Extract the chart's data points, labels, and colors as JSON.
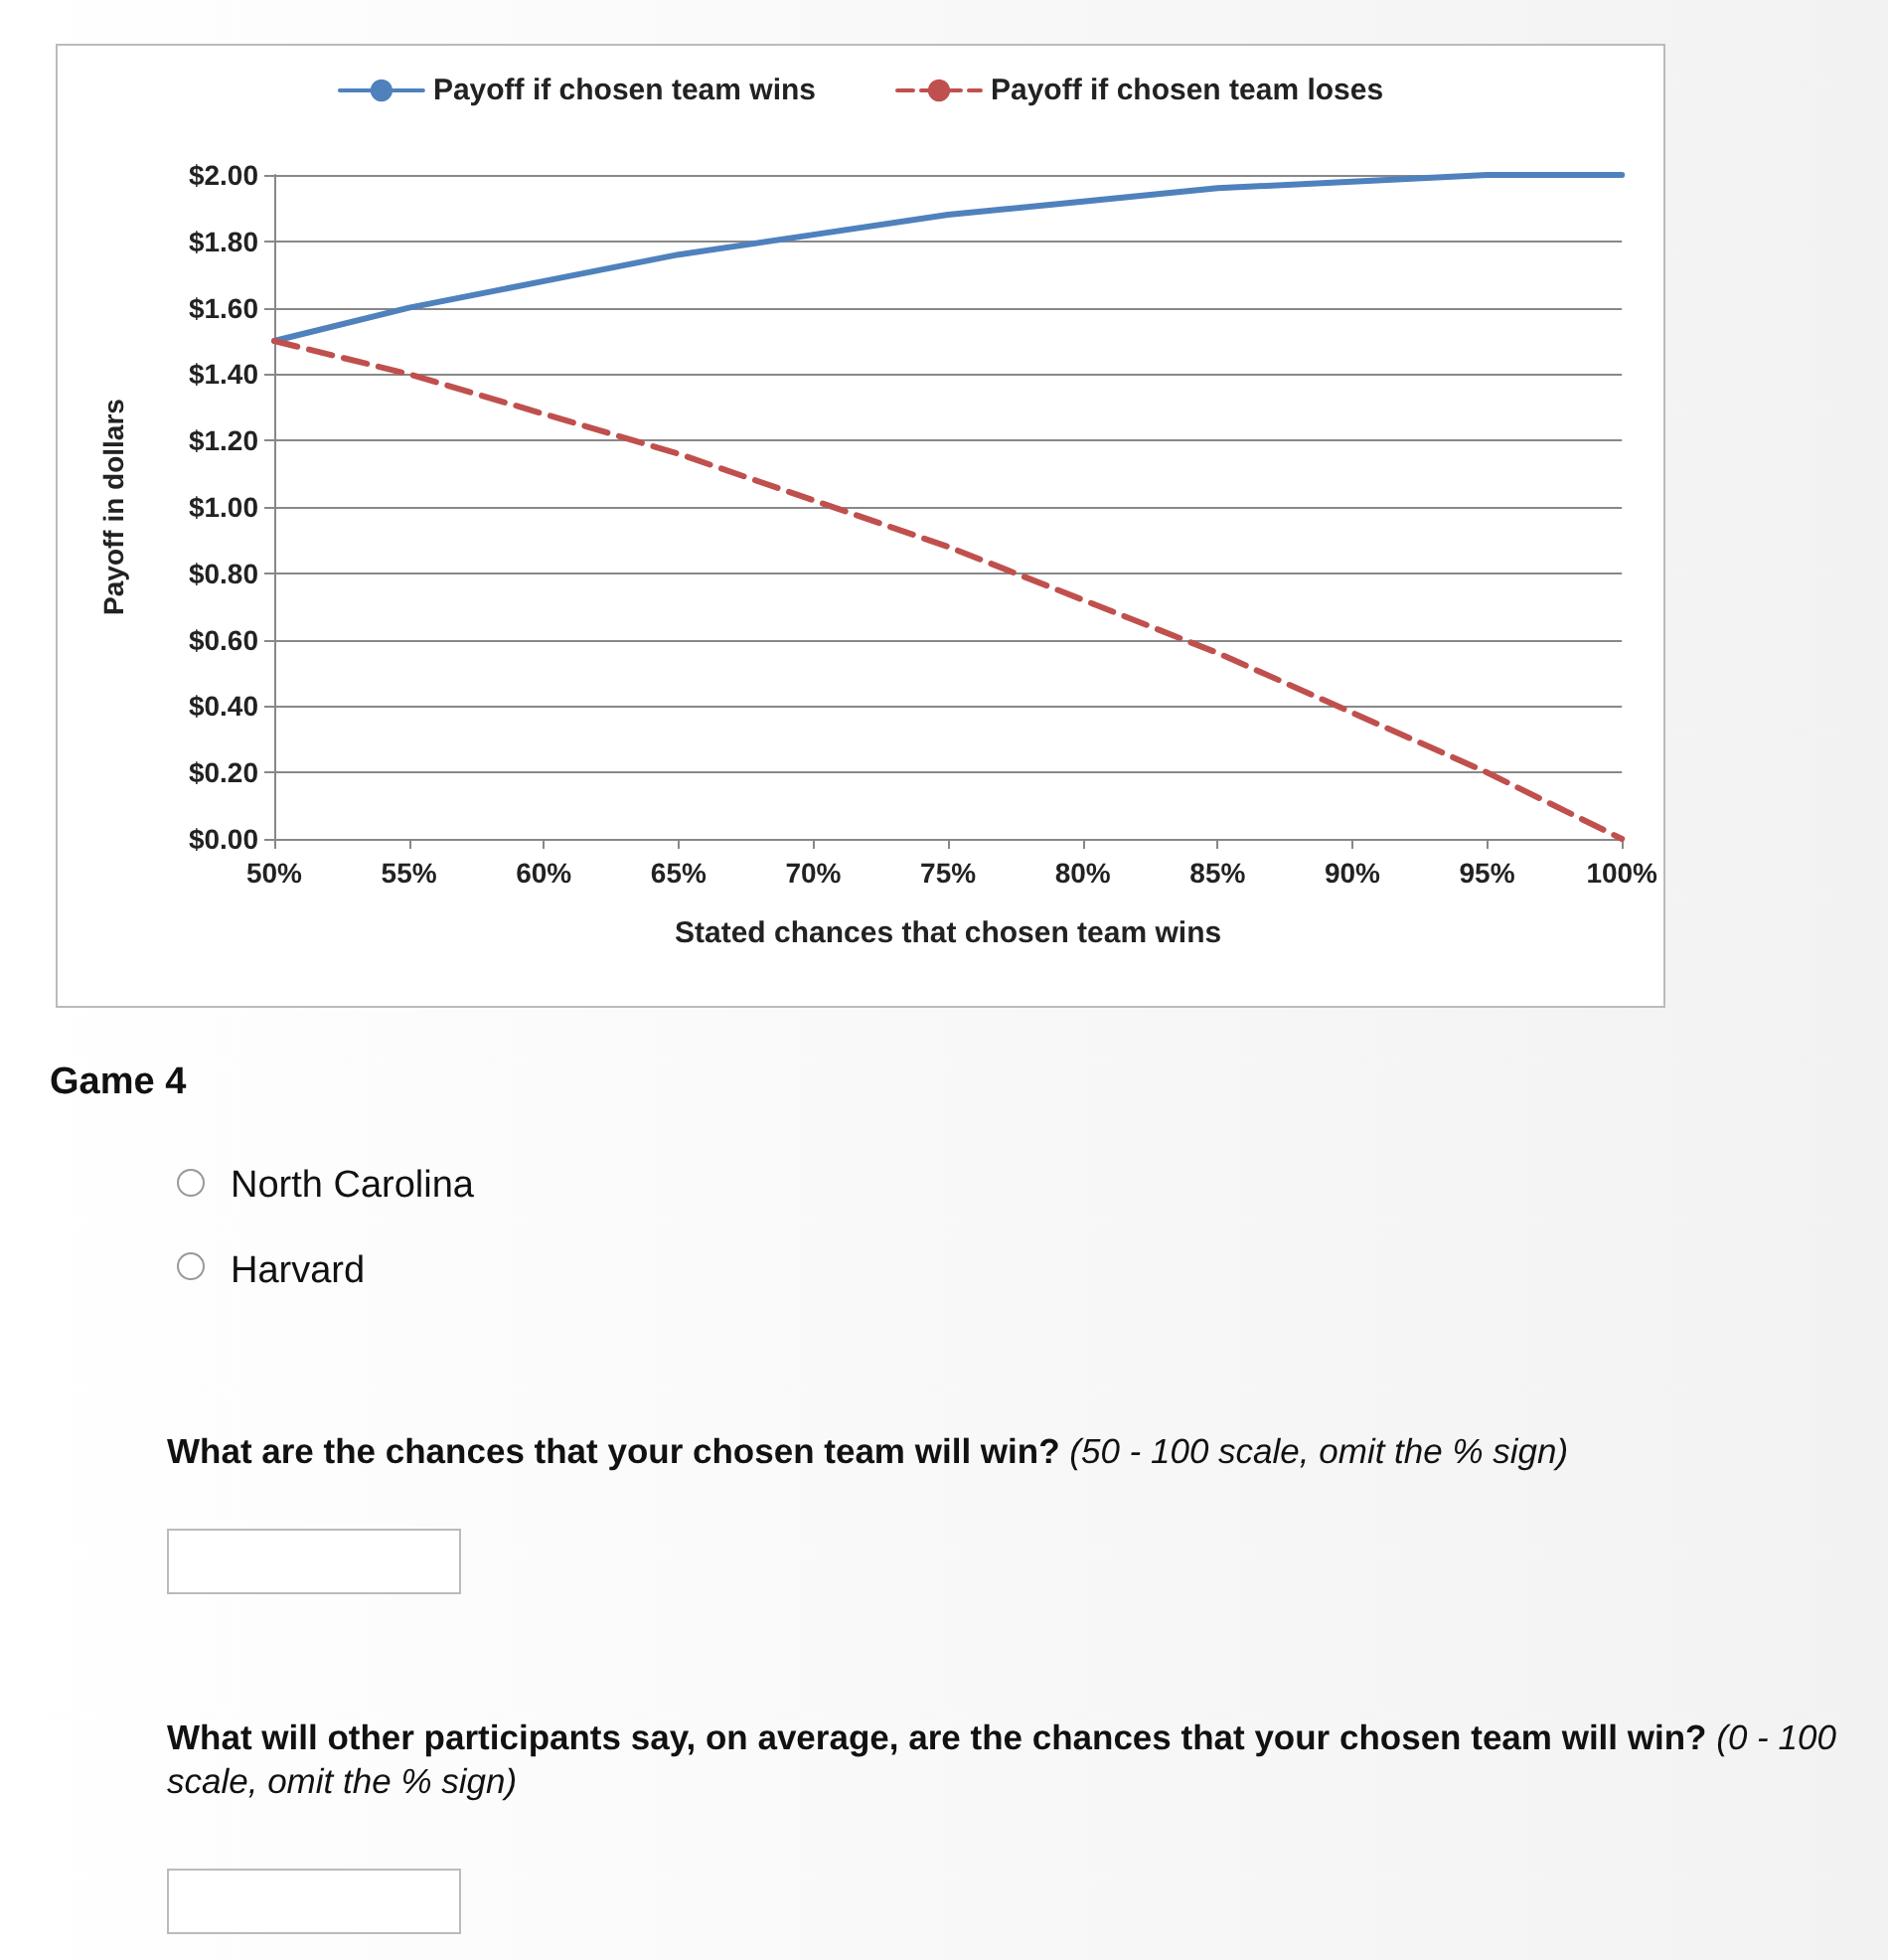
{
  "chart_data": {
    "type": "line",
    "xlabel": "Stated chances that chosen team wins",
    "ylabel": "Payoff in dollars",
    "x": [
      50,
      55,
      60,
      65,
      70,
      75,
      80,
      85,
      90,
      95,
      100
    ],
    "series": [
      {
        "name": "Payoff if chosen team wins",
        "color": "#4f81bd",
        "line_style": "solid",
        "values": [
          1.5,
          1.6,
          1.68,
          1.76,
          1.82,
          1.88,
          1.92,
          1.96,
          1.98,
          2.0,
          2.0
        ]
      },
      {
        "name": "Payoff if chosen team loses",
        "color": "#c0504d",
        "line_style": "dashed",
        "values": [
          1.5,
          1.4,
          1.28,
          1.16,
          1.02,
          0.88,
          0.72,
          0.56,
          0.38,
          0.2,
          0
        ]
      }
    ],
    "xlim": [
      50,
      100
    ],
    "xticks": [
      {
        "value": 50,
        "label": "50%"
      },
      {
        "value": 55,
        "label": "55%"
      },
      {
        "value": 60,
        "label": "60%"
      },
      {
        "value": 65,
        "label": "65%"
      },
      {
        "value": 70,
        "label": "70%"
      },
      {
        "value": 75,
        "label": "75%"
      },
      {
        "value": 80,
        "label": "80%"
      },
      {
        "value": 85,
        "label": "85%"
      },
      {
        "value": 90,
        "label": "90%"
      },
      {
        "value": 95,
        "label": "95%"
      },
      {
        "value": 100,
        "label": "100%"
      }
    ],
    "ylim": [
      0,
      2
    ],
    "yticks": [
      {
        "value": 0,
        "label": "$0.00"
      },
      {
        "value": 0.2,
        "label": "$0.20"
      },
      {
        "value": 0.4,
        "label": "$0.40"
      },
      {
        "value": 0.6,
        "label": "$0.60"
      },
      {
        "value": 0.8,
        "label": "$0.80"
      },
      {
        "value": 1,
        "label": "$1.00"
      },
      {
        "value": 1.2,
        "label": "$1.20"
      },
      {
        "value": 1.4,
        "label": "$1.40"
      },
      {
        "value": 1.6,
        "label": "$1.60"
      },
      {
        "value": 1.8,
        "label": "$1.80"
      },
      {
        "value": 2,
        "label": "$2.00"
      }
    ],
    "grid": "y",
    "legend": "top",
    "marker": "none",
    "annotations": [
      "Game 4",
      "North Carolina",
      "Harvard",
      "What are the chances that your chosen team will win?",
      "(50 - 100 scale, omit the % sign)",
      "What will other participants say, on average, are the chances that your chosen team will win?",
      "(0 - 100 scale, omit the % sign)"
    ]
  }
}
